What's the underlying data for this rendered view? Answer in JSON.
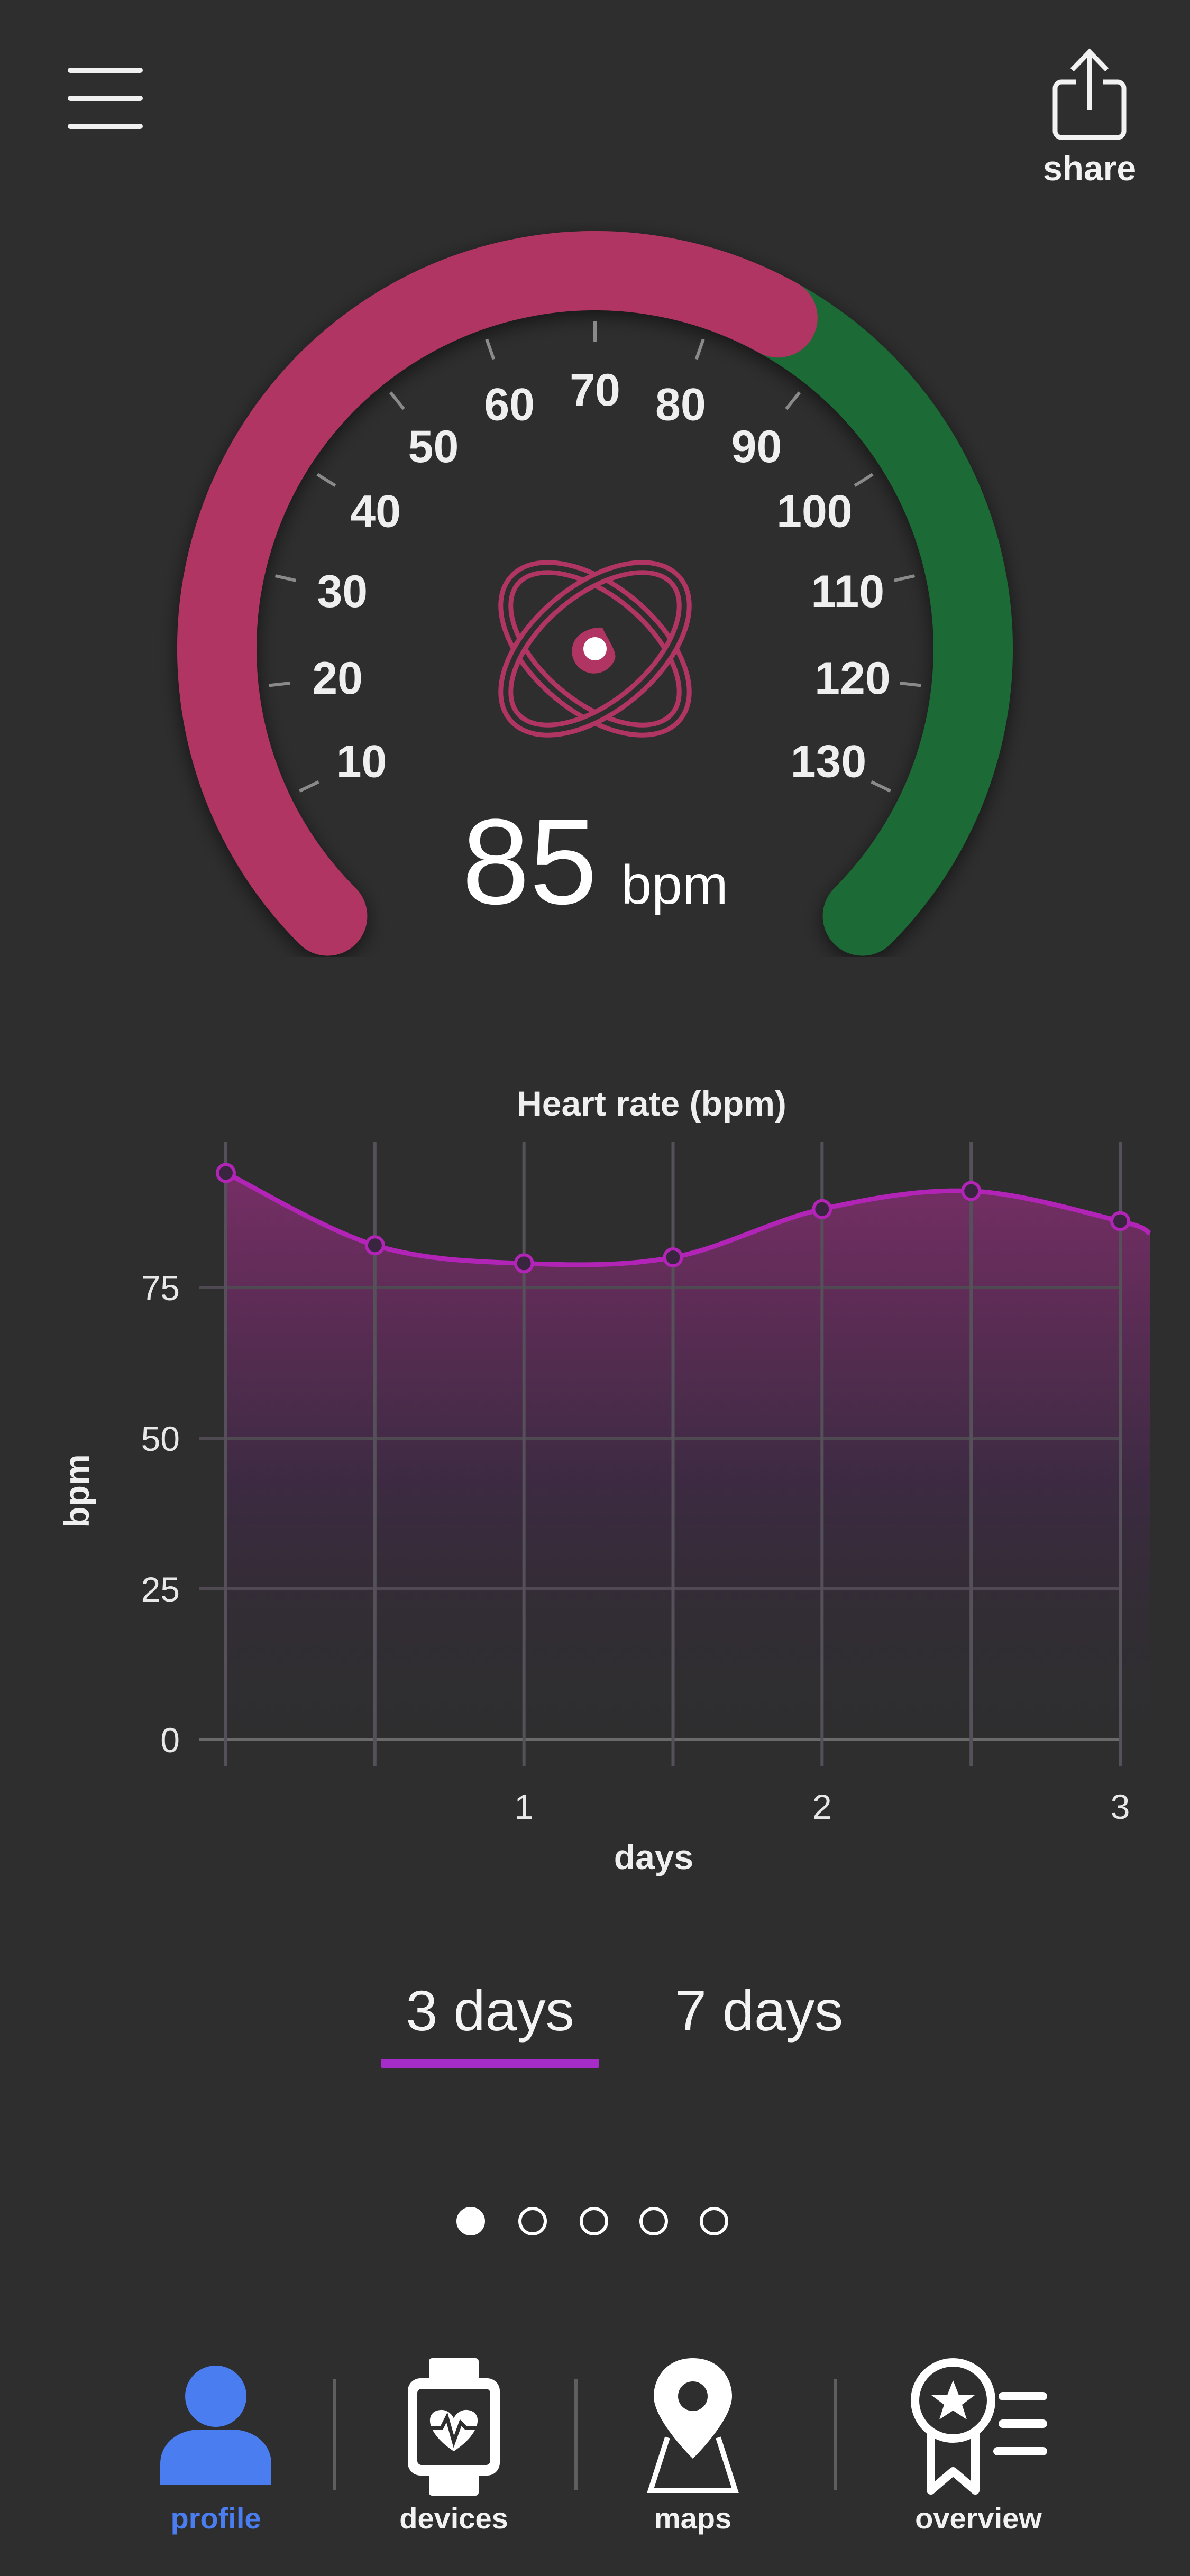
{
  "header": {
    "menu_icon": "hamburger-menu-icon",
    "share_icon": "share-upload-icon",
    "share_label": "share"
  },
  "gauge": {
    "min": 0,
    "max": 140,
    "value": 85,
    "unit": "bpm",
    "center_icon": "heart-orbit-icon",
    "ticks": [
      "10",
      "20",
      "30",
      "40",
      "50",
      "60",
      "70",
      "80",
      "90",
      "100",
      "110",
      "120",
      "130"
    ],
    "colors": {
      "below": "#b03562",
      "above": "#1c6b34",
      "track": "#2e2e2f"
    }
  },
  "chart_data": {
    "type": "area",
    "title": "Heart rate (bpm)",
    "xlabel": "days",
    "ylabel": "bpm",
    "x": [
      0,
      0.5,
      1,
      1.5,
      2,
      2.5,
      3,
      3.1
    ],
    "series": [
      {
        "values": [
          94,
          82,
          79,
          80,
          88,
          91,
          86,
          84
        ],
        "color": "#b124b6"
      }
    ],
    "x_ticks": [
      "1",
      "2",
      "3"
    ],
    "x_tick_values": [
      1,
      2,
      3
    ],
    "y_ticks": [
      "0",
      "25",
      "50",
      "75"
    ],
    "y_tick_values": [
      0,
      25,
      50,
      75
    ],
    "xlim": [
      0,
      3
    ],
    "ylim": [
      0,
      100
    ],
    "grid": true
  },
  "range_tabs": [
    {
      "label": "3 days",
      "selected": true
    },
    {
      "label": "7 days",
      "selected": false
    }
  ],
  "pager": {
    "count": 5,
    "active": 0
  },
  "bottom_nav": [
    {
      "label": "profile",
      "icon": "profile-person-icon",
      "active": true,
      "color": "#4a7df0"
    },
    {
      "label": "devices",
      "icon": "smartwatch-heart-icon",
      "active": false
    },
    {
      "label": "maps",
      "icon": "map-pin-icon",
      "active": false
    },
    {
      "label": "overview",
      "icon": "award-ribbon-list-icon",
      "active": false
    }
  ]
}
